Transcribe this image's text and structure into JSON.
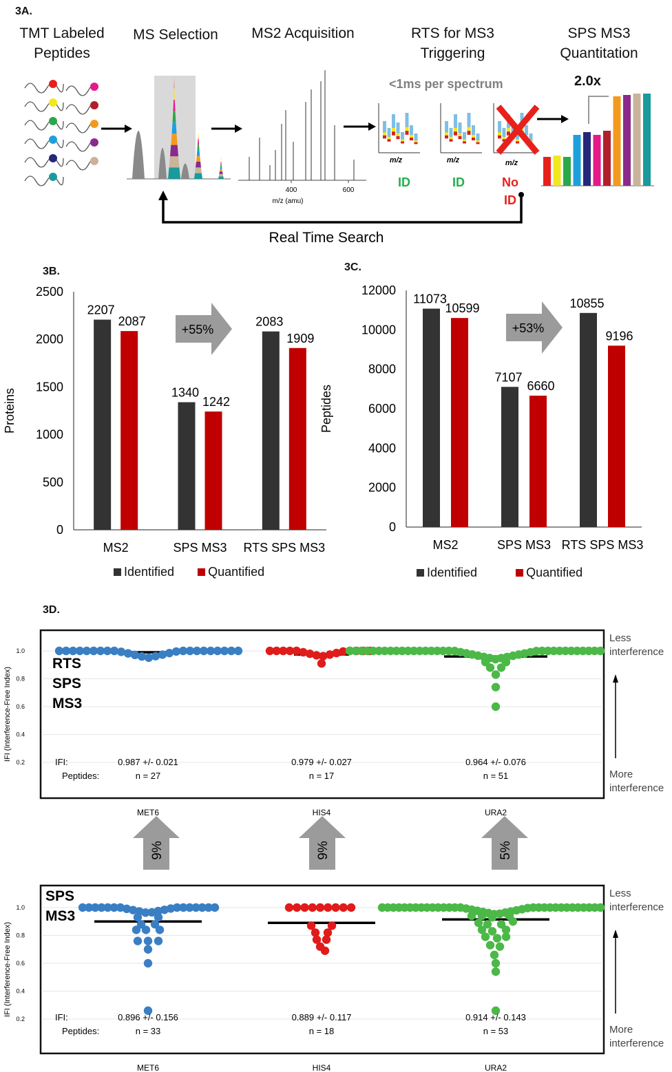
{
  "panel_3a": {
    "tag": "3A.",
    "stages": [
      "TMT Labeled\nPeptides",
      "MS Selection",
      "MS2 Acquisition",
      "RTS for MS3\nTriggering",
      "SPS MS3\nQuantitation"
    ],
    "rts_speed": "<1ms per spectrum",
    "fold": "2.0x",
    "mz_label": "m/z",
    "spectrum_ticks": [
      "400",
      "600"
    ],
    "spectrum_axis": "m/z (amu)",
    "id_labels": [
      "ID",
      "ID",
      "No\nID"
    ],
    "loop_label": "Real Time Search",
    "colors": {
      "id": "#22b04b",
      "noid": "#e8201c",
      "arrow": "#000000"
    }
  },
  "legend": {
    "identified": "Identified",
    "quantified": "Quantified"
  },
  "panel_3b": {
    "tag": "3B."
  },
  "panel_3c": {
    "tag": "3C."
  },
  "panel_3d": {
    "tag": "3D.",
    "top_label": "RTS\nSPS\nMS3",
    "bottom_label": "SPS\nMS3",
    "ylabel": "IFI (Interference-Free Index)",
    "less": "Less\ninterference",
    "more": "More\ninterference",
    "ifi_label": "IFI:",
    "pep_label": "Peptides:",
    "genes": [
      "MET6",
      "HIS4",
      "URA2"
    ],
    "gene_colors": [
      "#3a7fc4",
      "#e01b1b",
      "#4cb848"
    ],
    "top_stats": [
      "0.987 +/- 0.021",
      "0.979 +/- 0.027",
      "0.964 +/- 0.076"
    ],
    "top_n": [
      "n = 27",
      "n = 17",
      "n = 51"
    ],
    "bottom_stats": [
      "0.896 +/- 0.156",
      "0.889 +/- 0.117",
      "0.914 +/- 0.143"
    ],
    "bottom_n": [
      "n = 33",
      "n = 18",
      "n = 53"
    ],
    "improvements": [
      "9%",
      "9%",
      "5%"
    ],
    "yticks": [
      "1.0",
      "0.8",
      "0.6",
      "0.4",
      "0.2"
    ]
  },
  "chart_data": [
    {
      "type": "bar",
      "panel": "3B",
      "categories": [
        "MS2",
        "SPS MS3",
        "RTS SPS MS3"
      ],
      "series": [
        {
          "name": "Identified",
          "values": [
            2207,
            1340,
            2083
          ],
          "color": "#333333"
        },
        {
          "name": "Quantified",
          "values": [
            2087,
            1242,
            1909
          ],
          "color": "#c00000"
        }
      ],
      "ylabel": "Proteins",
      "ylim": [
        0,
        2500
      ],
      "yticks": [
        0,
        500,
        1000,
        1500,
        2000,
        2500
      ],
      "annotation": "+55%"
    },
    {
      "type": "bar",
      "panel": "3C",
      "categories": [
        "MS2",
        "SPS MS3",
        "RTS SPS MS3"
      ],
      "series": [
        {
          "name": "Identified",
          "values": [
            11073,
            7107,
            10855
          ],
          "color": "#333333"
        },
        {
          "name": "Quantified",
          "values": [
            10599,
            6660,
            9196
          ],
          "color": "#c00000"
        }
      ],
      "ylabel": "Peptides",
      "ylim": [
        0,
        12000
      ],
      "yticks": [
        0,
        2000,
        4000,
        6000,
        8000,
        10000,
        12000
      ],
      "annotation": "+53%"
    }
  ]
}
